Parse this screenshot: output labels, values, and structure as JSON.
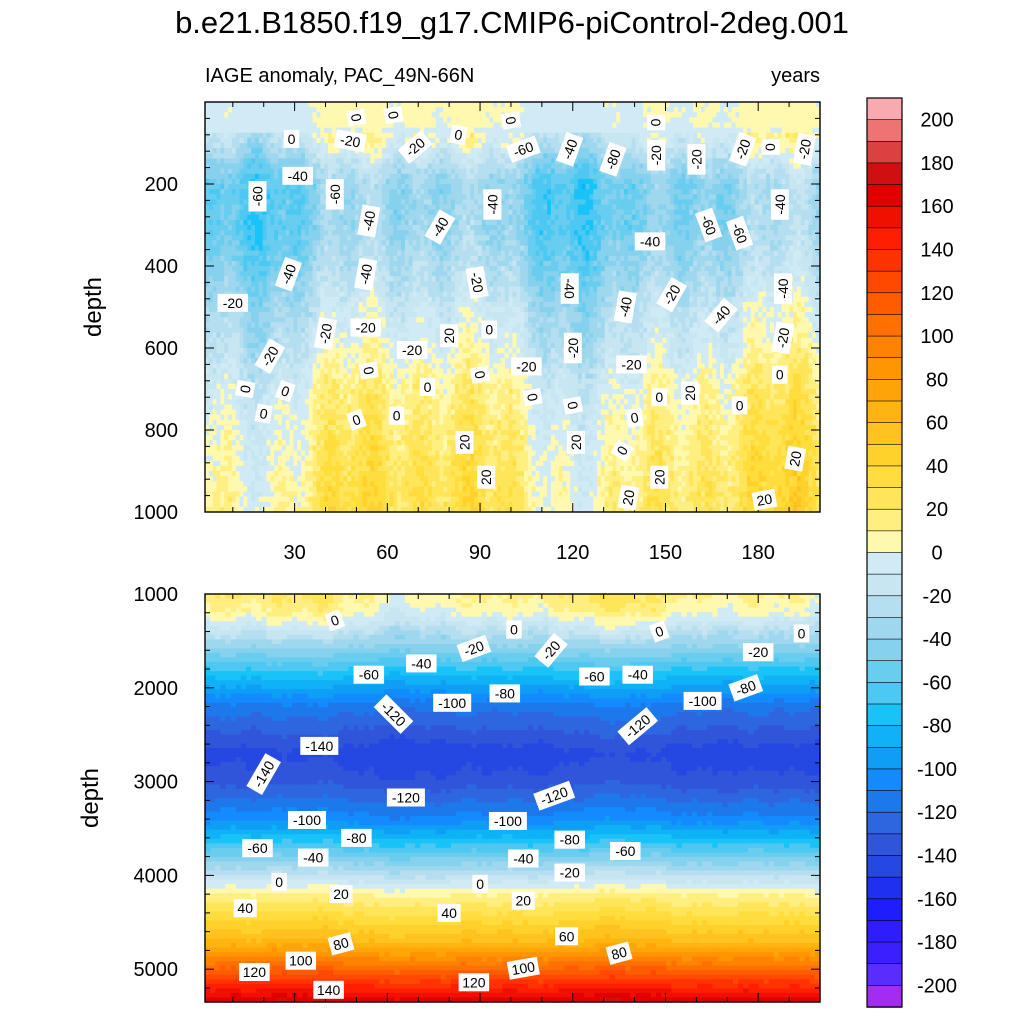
{
  "title": "b.e21.B1850.f19_g17.CMIP6-piControl-2deg.001",
  "chart_data": [
    {
      "type": "heatmap",
      "panel": "upper",
      "subtitle_left": "IAGE anomaly, PAC_49N-66N",
      "subtitle_right": "years",
      "ylabel": "depth",
      "xlabel": "",
      "xlim": [
        1,
        200
      ],
      "ylim": [
        1000,
        0
      ],
      "xticks": [
        30,
        60,
        90,
        120,
        150,
        180
      ],
      "xtick_labels": [
        "30",
        "60",
        "90",
        "120",
        "150",
        "180"
      ],
      "yticks": [
        200,
        400,
        600,
        800,
        1000
      ],
      "ytick_labels": [
        "200",
        "400",
        "600",
        "800",
        "1000"
      ],
      "profile": {
        "depth": [
          0,
          60,
          100,
          150,
          200,
          300,
          400,
          500,
          600,
          700,
          800,
          900,
          1000
        ],
        "mean_value": [
          0,
          0,
          -10,
          -30,
          -45,
          -45,
          -35,
          -20,
          -10,
          5,
          12,
          18,
          22
        ]
      },
      "contour_labels": [
        {
          "text": "0",
          "x": 50,
          "y": 38,
          "rot": 80
        },
        {
          "text": "0",
          "x": 62,
          "y": 32,
          "rot": 80
        },
        {
          "text": "0",
          "x": 100,
          "y": 45,
          "rot": 80
        },
        {
          "text": "0",
          "x": 147,
          "y": 50,
          "rot": 90
        },
        {
          "text": "0",
          "x": 29,
          "y": 90,
          "rot": 0
        },
        {
          "text": "-20",
          "x": 48,
          "y": 95,
          "rot": 10
        },
        {
          "text": "-20",
          "x": 69,
          "y": 110,
          "rot": -40
        },
        {
          "text": "0",
          "x": 83,
          "y": 80,
          "rot": 10
        },
        {
          "text": "-60",
          "x": 104,
          "y": 115,
          "rot": -20
        },
        {
          "text": "-40",
          "x": 119,
          "y": 115,
          "rot": -70
        },
        {
          "text": "-80",
          "x": 133,
          "y": 140,
          "rot": -70
        },
        {
          "text": "-20",
          "x": 147,
          "y": 130,
          "rot": -90
        },
        {
          "text": "-20",
          "x": 160,
          "y": 140,
          "rot": -90
        },
        {
          "text": "-20",
          "x": 175,
          "y": 115,
          "rot": -70
        },
        {
          "text": "0",
          "x": 184,
          "y": 110,
          "rot": 90
        },
        {
          "text": "-20",
          "x": 195,
          "y": 115,
          "rot": -80
        },
        {
          "text": "-60",
          "x": 18,
          "y": 230,
          "rot": -90
        },
        {
          "text": "-40",
          "x": 31,
          "y": 180,
          "rot": 0
        },
        {
          "text": "-60",
          "x": 43,
          "y": 225,
          "rot": -90
        },
        {
          "text": "-40",
          "x": 54,
          "y": 290,
          "rot": -80
        },
        {
          "text": "-40",
          "x": 94,
          "y": 250,
          "rot": -90
        },
        {
          "text": "-40",
          "x": 77,
          "y": 305,
          "rot": -60
        },
        {
          "text": "-60",
          "x": 164,
          "y": 300,
          "rot": 70
        },
        {
          "text": "-60",
          "x": 174,
          "y": 320,
          "rot": 70
        },
        {
          "text": "-40",
          "x": 187,
          "y": 250,
          "rot": -90
        },
        {
          "text": "-40",
          "x": 145,
          "y": 340,
          "rot": 0
        },
        {
          "text": "-40",
          "x": 28,
          "y": 420,
          "rot": -70
        },
        {
          "text": "-40",
          "x": 53,
          "y": 420,
          "rot": -80
        },
        {
          "text": "-20",
          "x": 10,
          "y": 490,
          "rot": 0
        },
        {
          "text": "-20",
          "x": 89,
          "y": 440,
          "rot": 80
        },
        {
          "text": "-40",
          "x": 119,
          "y": 455,
          "rot": 90
        },
        {
          "text": "-20",
          "x": 152,
          "y": 470,
          "rot": -60
        },
        {
          "text": "-40",
          "x": 188,
          "y": 455,
          "rot": -90
        },
        {
          "text": "-40",
          "x": 137,
          "y": 500,
          "rot": -80
        },
        {
          "text": "-40",
          "x": 168,
          "y": 520,
          "rot": -50
        },
        {
          "text": "-20",
          "x": 40,
          "y": 565,
          "rot": -80
        },
        {
          "text": "-20",
          "x": 53,
          "y": 550,
          "rot": 0
        },
        {
          "text": "20",
          "x": 80,
          "y": 570,
          "rot": -90
        },
        {
          "text": "0",
          "x": 93,
          "y": 555,
          "rot": 0
        },
        {
          "text": "-20",
          "x": 120,
          "y": 600,
          "rot": -90
        },
        {
          "text": "-20",
          "x": 188,
          "y": 575,
          "rot": -80
        },
        {
          "text": "-20",
          "x": 22,
          "y": 620,
          "rot": -60
        },
        {
          "text": "-20",
          "x": 68,
          "y": 605,
          "rot": 0
        },
        {
          "text": "-20",
          "x": 105,
          "y": 645,
          "rot": 0
        },
        {
          "text": "-20",
          "x": 139,
          "y": 640,
          "rot": 0
        },
        {
          "text": "0",
          "x": 54,
          "y": 655,
          "rot": 80
        },
        {
          "text": "0",
          "x": 90,
          "y": 665,
          "rot": 80
        },
        {
          "text": "0",
          "x": 187,
          "y": 665,
          "rot": 0
        },
        {
          "text": "0",
          "x": 14,
          "y": 700,
          "rot": -80
        },
        {
          "text": "0",
          "x": 27,
          "y": 705,
          "rot": 20
        },
        {
          "text": "0",
          "x": 73,
          "y": 695,
          "rot": 0
        },
        {
          "text": "0",
          "x": 107,
          "y": 720,
          "rot": 80
        },
        {
          "text": "20",
          "x": 158,
          "y": 710,
          "rot": -90
        },
        {
          "text": "0",
          "x": 148,
          "y": 720,
          "rot": 0
        },
        {
          "text": "0",
          "x": 120,
          "y": 740,
          "rot": 80
        },
        {
          "text": "0",
          "x": 174,
          "y": 740,
          "rot": 0
        },
        {
          "text": "0",
          "x": 20,
          "y": 760,
          "rot": 10
        },
        {
          "text": "0",
          "x": 50,
          "y": 775,
          "rot": -20
        },
        {
          "text": "0",
          "x": 63,
          "y": 765,
          "rot": 0
        },
        {
          "text": "0",
          "x": 140,
          "y": 770,
          "rot": -10
        },
        {
          "text": "20",
          "x": 85,
          "y": 830,
          "rot": -90
        },
        {
          "text": "20",
          "x": 121,
          "y": 830,
          "rot": -90
        },
        {
          "text": "0",
          "x": 136,
          "y": 850,
          "rot": -60
        },
        {
          "text": "20",
          "x": 192,
          "y": 870,
          "rot": -80
        },
        {
          "text": "20",
          "x": 92,
          "y": 915,
          "rot": -90
        },
        {
          "text": "20",
          "x": 148,
          "y": 915,
          "rot": -90
        },
        {
          "text": "20",
          "x": 138,
          "y": 965,
          "rot": -80
        },
        {
          "text": "20",
          "x": 182,
          "y": 970,
          "rot": -10
        }
      ]
    },
    {
      "type": "heatmap",
      "panel": "lower",
      "subtitle_left": "",
      "subtitle_right": "",
      "ylabel": "depth",
      "xlabel": "",
      "xlim": [
        1,
        200
      ],
      "ylim": [
        5350,
        1000
      ],
      "yticks": [
        1000,
        2000,
        3000,
        4000,
        5000
      ],
      "ytick_labels": [
        "1000",
        "2000",
        "3000",
        "4000",
        "5000"
      ],
      "profile": {
        "depth": [
          1000,
          1200,
          1400,
          1800,
          2200,
          2700,
          3000,
          3400,
          3700,
          4000,
          4200,
          4700,
          5000,
          5350
        ],
        "mean_value": [
          15,
          5,
          -20,
          -70,
          -115,
          -145,
          -135,
          -105,
          -65,
          -20,
          10,
          60,
          110,
          170
        ]
      },
      "contour_labels": [
        {
          "text": "0",
          "x": 43,
          "y": 1280,
          "rot": -20
        },
        {
          "text": "0",
          "x": 101,
          "y": 1380,
          "rot": 0
        },
        {
          "text": "0",
          "x": 148,
          "y": 1400,
          "rot": -20
        },
        {
          "text": "0",
          "x": 194,
          "y": 1420,
          "rot": 0
        },
        {
          "text": "-20",
          "x": 88,
          "y": 1580,
          "rot": -20
        },
        {
          "text": "-20",
          "x": 113,
          "y": 1600,
          "rot": -50
        },
        {
          "text": "-20",
          "x": 180,
          "y": 1620,
          "rot": 0
        },
        {
          "text": "-40",
          "x": 71,
          "y": 1740,
          "rot": 0
        },
        {
          "text": "-40",
          "x": 141,
          "y": 1860,
          "rot": 0
        },
        {
          "text": "-60",
          "x": 54,
          "y": 1860,
          "rot": 0
        },
        {
          "text": "-60",
          "x": 127,
          "y": 1880,
          "rot": 0
        },
        {
          "text": "-80",
          "x": 98,
          "y": 2060,
          "rot": 0
        },
        {
          "text": "-80",
          "x": 176,
          "y": 2000,
          "rot": -20
        },
        {
          "text": "-100",
          "x": 81,
          "y": 2160,
          "rot": 0
        },
        {
          "text": "-100",
          "x": 162,
          "y": 2140,
          "rot": 0
        },
        {
          "text": "-120",
          "x": 62,
          "y": 2280,
          "rot": 45
        },
        {
          "text": "-120",
          "x": 141,
          "y": 2410,
          "rot": -40
        },
        {
          "text": "-140",
          "x": 38,
          "y": 2620,
          "rot": 0
        },
        {
          "text": "-140",
          "x": 20,
          "y": 2920,
          "rot": -60
        },
        {
          "text": "-120",
          "x": 66,
          "y": 3170,
          "rot": 0
        },
        {
          "text": "-120",
          "x": 114,
          "y": 3150,
          "rot": -20
        },
        {
          "text": "-100",
          "x": 34,
          "y": 3410,
          "rot": 0
        },
        {
          "text": "-100",
          "x": 99,
          "y": 3420,
          "rot": 0
        },
        {
          "text": "-80",
          "x": 50,
          "y": 3600,
          "rot": 0
        },
        {
          "text": "-80",
          "x": 119,
          "y": 3620,
          "rot": 0
        },
        {
          "text": "-60",
          "x": 18,
          "y": 3710,
          "rot": 0
        },
        {
          "text": "-60",
          "x": 137,
          "y": 3740,
          "rot": 0
        },
        {
          "text": "-40",
          "x": 36,
          "y": 3810,
          "rot": 0
        },
        {
          "text": "-40",
          "x": 104,
          "y": 3820,
          "rot": 0
        },
        {
          "text": "-20",
          "x": 119,
          "y": 3970,
          "rot": 0
        },
        {
          "text": "0",
          "x": 25,
          "y": 4070,
          "rot": 0
        },
        {
          "text": "0",
          "x": 90,
          "y": 4090,
          "rot": 0
        },
        {
          "text": "20",
          "x": 45,
          "y": 4200,
          "rot": 0
        },
        {
          "text": "20",
          "x": 104,
          "y": 4270,
          "rot": 0
        },
        {
          "text": "40",
          "x": 14,
          "y": 4350,
          "rot": 0
        },
        {
          "text": "40",
          "x": 80,
          "y": 4400,
          "rot": 0
        },
        {
          "text": "60",
          "x": 118,
          "y": 4650,
          "rot": 0
        },
        {
          "text": "80",
          "x": 45,
          "y": 4730,
          "rot": -15
        },
        {
          "text": "80",
          "x": 135,
          "y": 4830,
          "rot": -15
        },
        {
          "text": "100",
          "x": 32,
          "y": 4910,
          "rot": 0
        },
        {
          "text": "100",
          "x": 104,
          "y": 4990,
          "rot": -10
        },
        {
          "text": "120",
          "x": 17,
          "y": 5030,
          "rot": 0
        },
        {
          "text": "120",
          "x": 88,
          "y": 5140,
          "rot": 0
        },
        {
          "text": "140",
          "x": 41,
          "y": 5220,
          "rot": 0
        }
      ]
    }
  ],
  "colorbar": {
    "levels": [
      -210,
      -200,
      -190,
      -180,
      -170,
      -160,
      -150,
      -140,
      -130,
      -120,
      -110,
      -100,
      -90,
      -80,
      -70,
      -60,
      -50,
      -40,
      -30,
      -20,
      -10,
      0,
      10,
      20,
      30,
      40,
      50,
      60,
      70,
      80,
      90,
      100,
      110,
      120,
      130,
      140,
      150,
      160,
      170,
      180,
      190,
      200,
      210
    ],
    "colors": [
      "#a22cf0",
      "#5b2cff",
      "#3a20ff",
      "#2f1dff",
      "#1d1dff",
      "#2030f0",
      "#2547e2",
      "#3055da",
      "#2e66e0",
      "#1d78ec",
      "#148aff",
      "#0e9ef5",
      "#10b2f7",
      "#19c3f7",
      "#4cc8f2",
      "#69cdf0",
      "#86d1ee",
      "#9fd8ee",
      "#b5dff0",
      "#c8e5f2",
      "#d0ebf5",
      "#fff9b0",
      "#ffef80",
      "#ffe55a",
      "#ffdd3c",
      "#ffd12a",
      "#ffc21e",
      "#ffb410",
      "#ffa508",
      "#ff9500",
      "#ff8200",
      "#ff7000",
      "#ff5c00",
      "#ff4800",
      "#ff3300",
      "#ff1e00",
      "#f01000",
      "#e00000",
      "#d01010",
      "#dc4040",
      "#ee7474",
      "#f8aab0"
    ],
    "tick_labels": [
      "200",
      "180",
      "160",
      "140",
      "120",
      "100",
      "80",
      "60",
      "40",
      "20",
      "0",
      "-20",
      "-40",
      "-60",
      "-80",
      "-100",
      "-120",
      "-140",
      "-160",
      "-180",
      "-200"
    ]
  }
}
